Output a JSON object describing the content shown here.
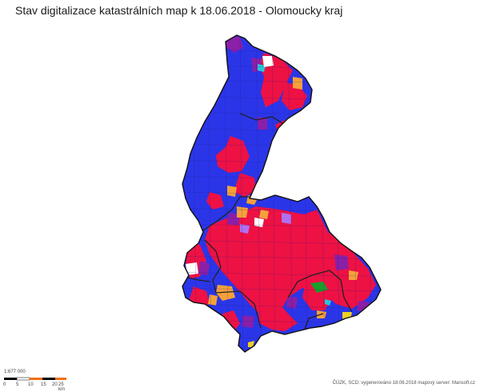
{
  "title": "Stav digitalizace katastrálních map k 18.06.2018 - Olomoucky kraj",
  "colors": {
    "digital_blue": "#2b35e8",
    "digitized_red": "#ee1144",
    "in_progress_purple": "#8a1fa8",
    "orange": "#f5a03a",
    "violet": "#b070f0",
    "green": "#1a9e2a",
    "cyan": "#22c8d8",
    "yellow": "#f0d020",
    "white": "#ffffff",
    "border": "#222222"
  },
  "scale": {
    "label": "1:677 000",
    "ticks": [
      "0",
      "5",
      "10",
      "15",
      "20",
      "25 km"
    ]
  },
  "credits": "ČÚZK, SCD: vygenerováno 18.06.2018 mapový server: Mansoft.cz"
}
